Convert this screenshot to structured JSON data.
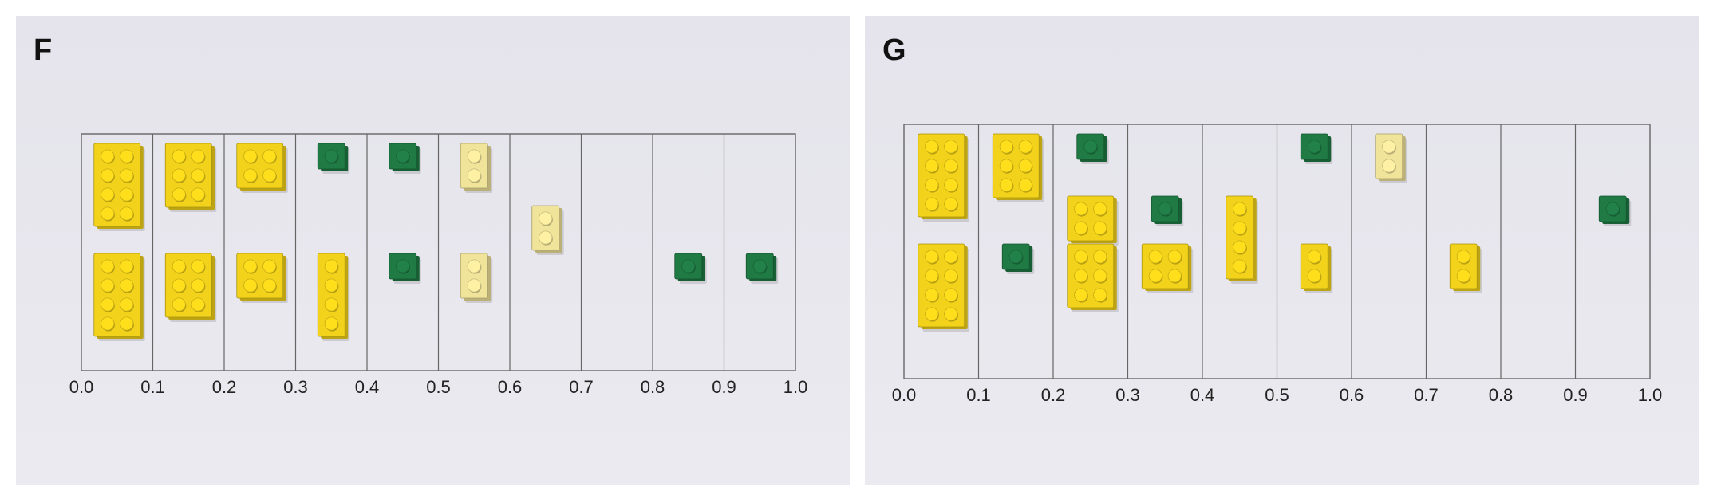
{
  "colors": {
    "yellow_brick": "#f2d21a",
    "pale_yellow_brick": "#f0e39a",
    "green_brick": "#1f7a44",
    "grid_line": "#666666",
    "background": "#e8e7ee"
  },
  "axis_tick_labels": [
    "0.0",
    "0.1",
    "0.2",
    "0.3",
    "0.4",
    "0.5",
    "0.6",
    "0.7",
    "0.8",
    "0.9",
    "1.0"
  ],
  "panels": [
    {
      "id": "F",
      "letter": "F",
      "bricks": [
        {
          "bin": 0,
          "row": "top",
          "color": "yellow",
          "studs": "2x4"
        },
        {
          "bin": 0,
          "row": "bottom",
          "color": "yellow",
          "studs": "2x4"
        },
        {
          "bin": 1,
          "row": "top",
          "color": "yellow",
          "studs": "2x3"
        },
        {
          "bin": 1,
          "row": "bottom",
          "color": "yellow",
          "studs": "2x3"
        },
        {
          "bin": 2,
          "row": "top",
          "color": "yellow",
          "studs": "2x2"
        },
        {
          "bin": 2,
          "row": "bottom",
          "color": "yellow",
          "studs": "2x2"
        },
        {
          "bin": 3,
          "row": "top",
          "color": "green",
          "studs": "1x1"
        },
        {
          "bin": 3,
          "row": "bottom",
          "color": "yellow",
          "studs": "1x4"
        },
        {
          "bin": 4,
          "row": "top",
          "color": "green",
          "studs": "1x1"
        },
        {
          "bin": 4,
          "row": "bottom",
          "color": "green",
          "studs": "1x1"
        },
        {
          "bin": 5,
          "row": "top",
          "color": "pale-yellow",
          "studs": "1x2"
        },
        {
          "bin": 5,
          "row": "bottom",
          "color": "pale-yellow",
          "studs": "1x2"
        },
        {
          "bin": 6,
          "row": "middle",
          "color": "pale-yellow",
          "studs": "1x2"
        },
        {
          "bin": 8,
          "row": "bottom",
          "color": "green",
          "studs": "1x1"
        },
        {
          "bin": 9,
          "row": "bottom",
          "color": "green",
          "studs": "1x1"
        }
      ]
    },
    {
      "id": "G",
      "letter": "G",
      "bricks": [
        {
          "bin": 0,
          "row": "top",
          "color": "yellow",
          "studs": "2x4"
        },
        {
          "bin": 0,
          "row": "bottom",
          "color": "yellow",
          "studs": "2x4"
        },
        {
          "bin": 1,
          "row": "top",
          "color": "yellow",
          "studs": "2x3"
        },
        {
          "bin": 1,
          "row": "bottom",
          "color": "green",
          "studs": "1x1"
        },
        {
          "bin": 2,
          "row": "top",
          "color": "green",
          "studs": "1x1"
        },
        {
          "bin": 2,
          "row": "middle",
          "color": "yellow",
          "studs": "2x2"
        },
        {
          "bin": 2,
          "row": "bottom",
          "color": "yellow",
          "studs": "2x3"
        },
        {
          "bin": 3,
          "row": "middle",
          "color": "green",
          "studs": "1x1"
        },
        {
          "bin": 3,
          "row": "bottom",
          "color": "yellow",
          "studs": "2x2"
        },
        {
          "bin": 4,
          "row": "middle",
          "color": "yellow",
          "studs": "1x4"
        },
        {
          "bin": 5,
          "row": "top",
          "color": "green",
          "studs": "1x1"
        },
        {
          "bin": 5,
          "row": "bottom",
          "color": "yellow",
          "studs": "1x2"
        },
        {
          "bin": 6,
          "row": "top",
          "color": "pale-yellow",
          "studs": "1x2"
        },
        {
          "bin": 7,
          "row": "bottom",
          "color": "yellow",
          "studs": "1x2"
        },
        {
          "bin": 9,
          "row": "middle",
          "color": "green",
          "studs": "1x1"
        }
      ]
    }
  ]
}
